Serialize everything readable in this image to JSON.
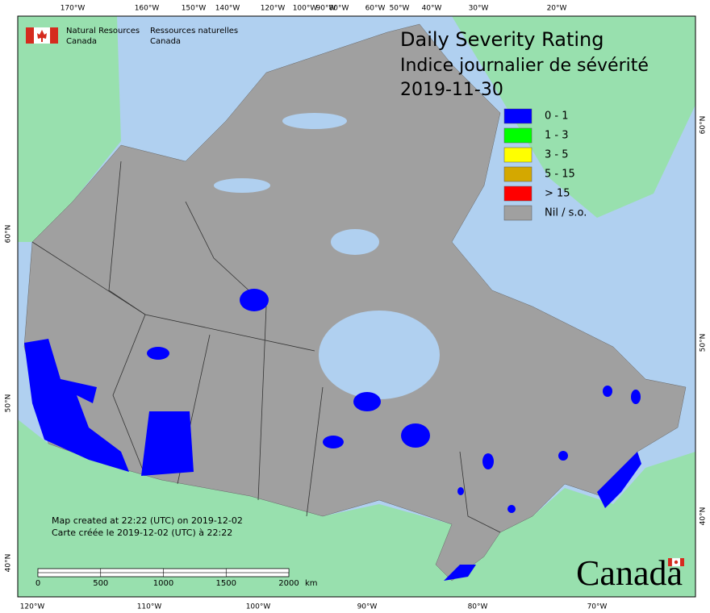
{
  "header": {
    "en_line1": "Natural Resources",
    "en_line2": "Canada",
    "fr_line1": "Ressources naturelles",
    "fr_line2": "Canada"
  },
  "title": {
    "line1": "Daily Severity Rating",
    "line2": "Indice journalier de sévérité",
    "date": "2019-11-30"
  },
  "legend": [
    {
      "label": "0 - 1",
      "color": "#0000ff"
    },
    {
      "label": "1 - 3",
      "color": "#00ff00"
    },
    {
      "label": "3 - 5",
      "color": "#ffff00"
    },
    {
      "label": "5 - 15",
      "color": "#d4a800"
    },
    {
      "label": "> 15",
      "color": "#ff0000"
    },
    {
      "label": "Nil / s.o.",
      "color": "#a0a0a0"
    }
  ],
  "credits": [
    "Map created at 22:22 (UTC) on 2019-12-02",
    "Carte créée le 2019-12-02 (UTC) à 22:22"
  ],
  "scale_bar": {
    "ticks": [
      0,
      500,
      1000,
      1500,
      2000
    ],
    "unit": "km"
  },
  "graticule": {
    "top": [
      "170°W",
      "160°W",
      "150°W",
      "140°W",
      "120°W",
      "100°W",
      "90°W",
      "80°W",
      "60°W",
      "50°W",
      "40°W",
      "30°W",
      "20°W"
    ],
    "bottom": [
      "120°W",
      "110°W",
      "100°W",
      "90°W",
      "80°W",
      "70°W"
    ],
    "left": [
      "60°N",
      "50°N",
      "40°N"
    ],
    "right": [
      "60°N",
      "50°N",
      "40°N"
    ]
  },
  "wordmark": "Canada"
}
